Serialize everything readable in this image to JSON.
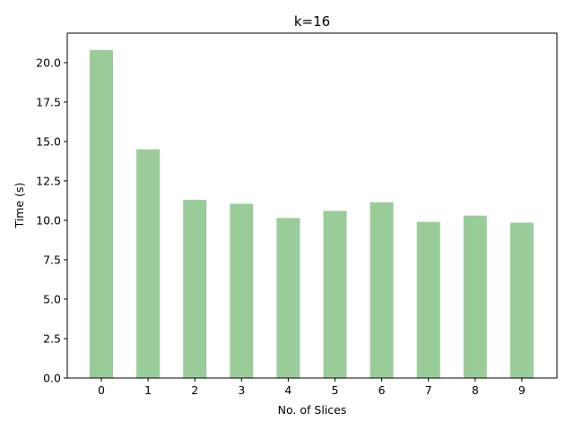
{
  "chart_data": {
    "type": "bar",
    "title": "k=16",
    "xlabel": "No. of Slices",
    "ylabel": "Time (s)",
    "categories": [
      "0",
      "1",
      "2",
      "3",
      "4",
      "5",
      "6",
      "7",
      "8",
      "9"
    ],
    "values": [
      20.8,
      14.5,
      11.3,
      11.05,
      10.15,
      10.6,
      11.15,
      9.9,
      10.3,
      9.85
    ],
    "ylim": [
      0,
      21.87
    ],
    "yticks": [
      "0.0",
      "2.5",
      "5.0",
      "7.5",
      "10.0",
      "12.5",
      "15.0",
      "17.5",
      "20.0"
    ],
    "bar_color": "#99cc99",
    "grid": false
  }
}
